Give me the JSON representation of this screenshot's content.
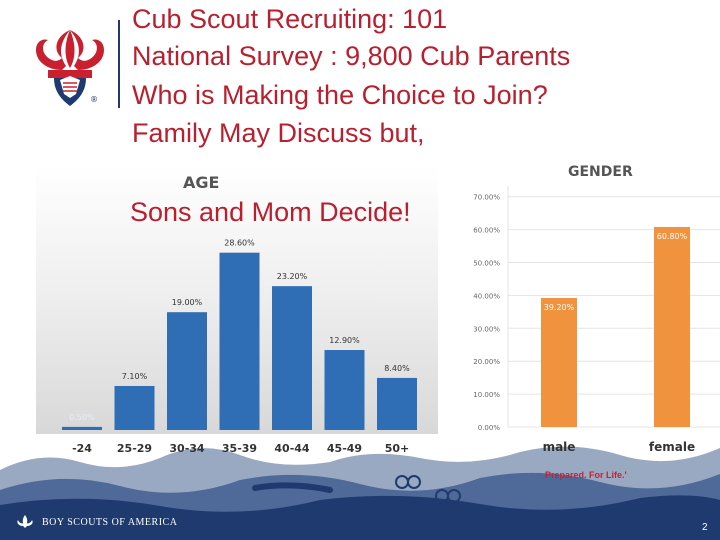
{
  "slide": {
    "title_lines": [
      "Cub Scout Recruiting: 101",
      "National Survey : 9,800 Cub Parents",
      "Who is Making the Choice to Join?",
      "Family May Discuss but,"
    ],
    "subtitle": "Sons and Mom Decide!",
    "tagline": "Prepared. For Life.'",
    "org_name": "BOY SCOUTS OF AMERICA",
    "page_number": "2",
    "colors": {
      "title_red": "#b91f2e",
      "navy": "#1f3a6e",
      "age_bar": "#2f6db5",
      "gender_bar": "#f0923e"
    }
  },
  "chart_data": [
    {
      "type": "bar",
      "title": "AGE",
      "categories": [
        "-24",
        "25-29",
        "30-34",
        "35-39",
        "40-44",
        "45-49",
        "50+"
      ],
      "values": [
        0.5,
        7.1,
        19.0,
        28.6,
        23.2,
        12.9,
        8.4
      ],
      "data_labels": [
        "0.50%",
        "7.10%",
        "19.00%",
        "28.60%",
        "23.20%",
        "12.90%",
        "8.40%"
      ],
      "ylim": [
        0,
        30
      ],
      "grid": false
    },
    {
      "type": "bar",
      "title": "GENDER",
      "categories": [
        "male",
        "female"
      ],
      "values": [
        39.2,
        60.8
      ],
      "data_labels": [
        "39.20%",
        "60.80%"
      ],
      "yticks": [
        "0.00%",
        "10.00%",
        "20.00%",
        "30.00%",
        "40.00%",
        "50.00%",
        "60.00%",
        "70.00%"
      ],
      "ylim": [
        0,
        70
      ],
      "grid": true
    }
  ]
}
